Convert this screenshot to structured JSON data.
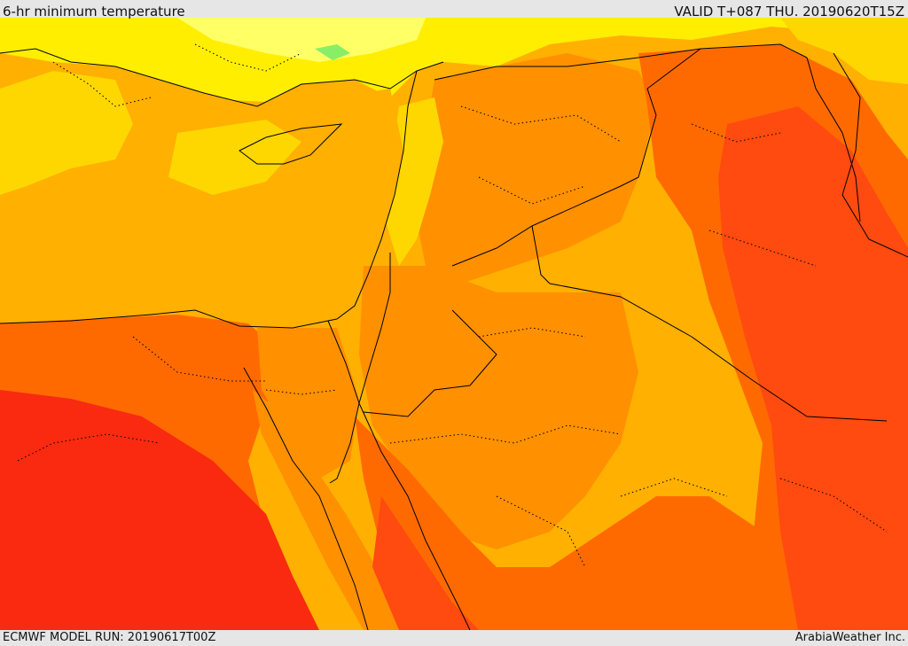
{
  "header": {
    "title": "6-hr minimum temperature",
    "valid": "VALID T+087 THU. 20190620T15Z"
  },
  "footer": {
    "model_run": "ECMWF MODEL RUN: 20190617T00Z",
    "credit": "ArabiaWeather Inc."
  },
  "map": {
    "palette": {
      "pale_yellow": "#ffff66",
      "yellow": "#ffee00",
      "gold": "#ffd700",
      "amber": "#ffb000",
      "orange": "#ff9000",
      "dark_orange": "#ff6a00",
      "red_orange": "#ff4a10",
      "red": "#f92a10",
      "sea_green": "#88ee66"
    },
    "line_color": "#000000"
  }
}
